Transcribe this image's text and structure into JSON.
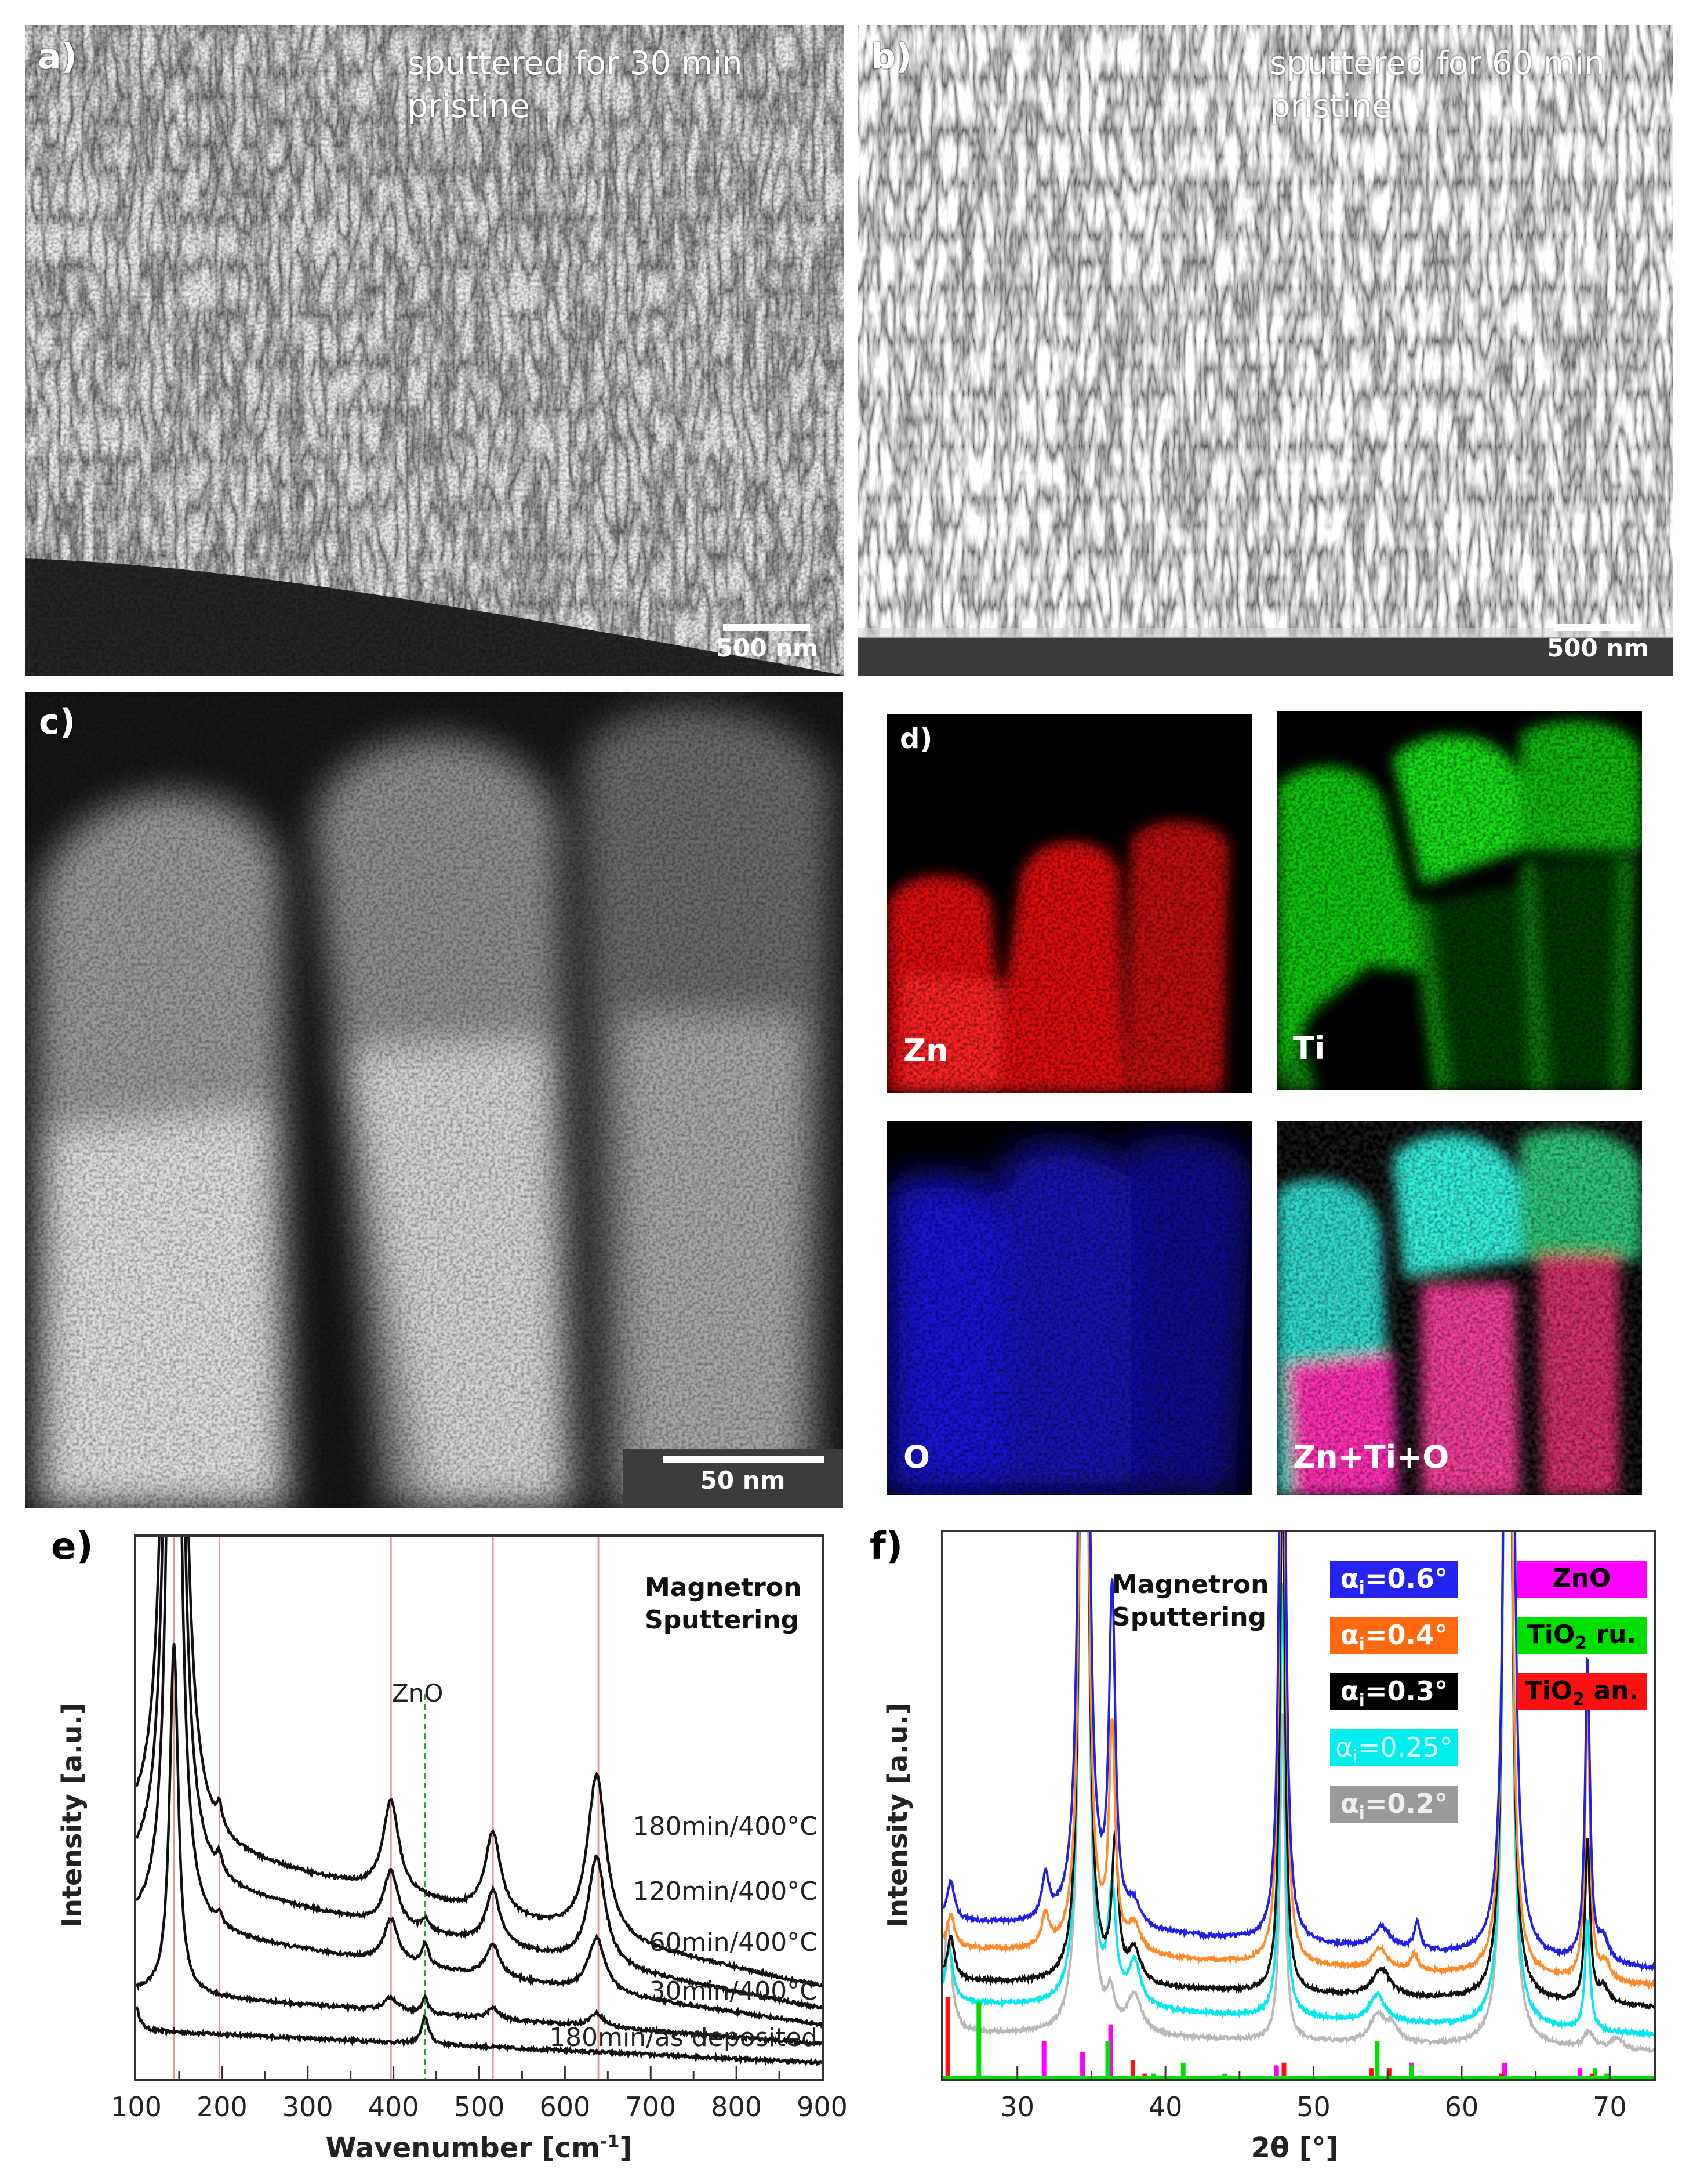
{
  "panels": {
    "a": {
      "label": "a)",
      "caption_line1": "sputtered for 30 min",
      "caption_line2": "pristine",
      "scale_bar": "500 nm"
    },
    "b": {
      "label": "b)",
      "caption_line1": "sputtered for 60 min",
      "caption_line2": "pristine",
      "scale_bar": "500 nm"
    },
    "c": {
      "label": "c)",
      "scale_bar": "50 nm"
    },
    "d": {
      "label": "d)",
      "maps": [
        {
          "element": "Zn",
          "color": "#ff1a1a"
        },
        {
          "element": "Ti",
          "color": "#1aff1a"
        },
        {
          "element": "O",
          "color": "#1a1aff"
        },
        {
          "element": "Zn+Ti+O",
          "color": "#ff33cc"
        }
      ]
    }
  },
  "chart_data": [
    {
      "panel_label": "e)",
      "type": "line",
      "annotation_line1": "Magnetron",
      "annotation_line2": "Sputtering",
      "xlabel": "Wavenumber [cm",
      "xlabel_sup": "-1",
      "xlabel_end": "]",
      "ylabel": "Intensity [a.u.]",
      "xlim": [
        100,
        900
      ],
      "xticks": [
        "100",
        "200",
        "300",
        "400",
        "500",
        "600",
        "700",
        "800",
        "900"
      ],
      "reference_lines": {
        "color": "#e49a9a",
        "x": [
          144,
          197,
          397,
          516,
          639
        ]
      },
      "zno_marker": {
        "label": "ZnO",
        "x": 437,
        "color": "#22aa22"
      },
      "series": [
        {
          "name": "180min/as deposited",
          "baseline": [
            9,
            3
          ],
          "peaks": [
            [
              100,
              4,
              5
            ],
            [
              437,
              5,
              5
            ]
          ]
        },
        {
          "name": "30min/400°C",
          "baseline": [
            16,
            6.5
          ],
          "peaks": [
            [
              144,
              65,
              6
            ],
            [
              397,
              2.5,
              10
            ],
            [
              437,
              3,
              4
            ],
            [
              516,
              2,
              8
            ],
            [
              637,
              2.5,
              10
            ]
          ]
        },
        {
          "name": "60min/400°C",
          "baseline": [
            28,
            10
          ],
          "peaks": [
            [
              144,
              200,
              7
            ],
            [
              197,
              2,
              4
            ],
            [
              397,
              8,
              10
            ],
            [
              437,
              4,
              5
            ],
            [
              516,
              6,
              10
            ],
            [
              637,
              10,
              12
            ]
          ]
        },
        {
          "name": "120min/400°C",
          "baseline": [
            37,
            13
          ],
          "peaks": [
            [
              144,
              300,
              7
            ],
            [
              197,
              3,
              4
            ],
            [
              397,
              10,
              10
            ],
            [
              437,
              2,
              5
            ],
            [
              516,
              10,
              10
            ],
            [
              637,
              20,
              12
            ]
          ]
        },
        {
          "name": "180min/400°C",
          "baseline": [
            44,
            17
          ],
          "peaks": [
            [
              144,
              400,
              7
            ],
            [
              197,
              4,
              4
            ],
            [
              397,
              17,
              11
            ],
            [
              516,
              15,
              11
            ],
            [
              637,
              30,
              13
            ]
          ]
        }
      ]
    },
    {
      "panel_label": "f)",
      "type": "line",
      "annotation_line1": "Magnetron",
      "annotation_line2": "Sputtering",
      "xlabel": "2θ [°]",
      "ylabel": "Intensity [a.u.]",
      "xlim": [
        25,
        73
      ],
      "xticks": [
        "30",
        "40",
        "50",
        "60",
        "70"
      ],
      "series": [
        {
          "alpha_i": "0.2°",
          "color": "#b8b8b8",
          "legend_color": "#9a9a9a",
          "baseline": [
            8.5,
            5
          ],
          "peaks": [
            [
              25.3,
              20,
              0.3
            ],
            [
              34.5,
              300,
              0.2
            ],
            [
              36.3,
              6,
              0.3
            ],
            [
              37.9,
              7,
              0.6
            ],
            [
              47.9,
              60,
              0.2
            ],
            [
              54.3,
              5,
              0.6
            ],
            [
              55.3,
              3,
              0.5
            ],
            [
              63.1,
              300,
              0.2
            ],
            [
              68.6,
              3,
              0.4
            ],
            [
              70.5,
              2,
              0.5
            ]
          ]
        },
        {
          "alpha_i": "0.25°",
          "color": "#00e8f0",
          "legend_color": "#00eeee",
          "baseline": [
            14,
            8
          ],
          "peaks": [
            [
              25.4,
              10,
              0.3
            ],
            [
              34.5,
              300,
              0.2
            ],
            [
              36.4,
              20,
              0.3
            ],
            [
              37.9,
              8,
              0.5
            ],
            [
              47.9,
              80,
              0.2
            ],
            [
              54.3,
              5,
              0.6
            ],
            [
              63.1,
              300,
              0.2
            ],
            [
              68.5,
              20,
              0.2
            ]
          ]
        },
        {
          "alpha_i": "0.3°",
          "color": "#111111",
          "legend_color": "#000000",
          "baseline": [
            18,
            13
          ],
          "peaks": [
            [
              25.5,
              8,
              0.3
            ],
            [
              34.5,
              300,
              0.2
            ],
            [
              36.6,
              25,
              0.25
            ],
            [
              37.9,
              6,
              0.5
            ],
            [
              47.9,
              100,
              0.2
            ],
            [
              54.6,
              5,
              0.7
            ],
            [
              63.1,
              300,
              0.2
            ],
            [
              68.5,
              30,
              0.2
            ],
            [
              69.6,
              3,
              0.4
            ]
          ]
        },
        {
          "alpha_i": "0.4°",
          "color": "#ff8a2a",
          "legend_color": "#ff6a10",
          "baseline": [
            24,
            17
          ],
          "peaks": [
            [
              25.5,
              6,
              0.3
            ],
            [
              31.9,
              6,
              0.3
            ],
            [
              34.5,
              300,
              0.2
            ],
            [
              36.4,
              40,
              0.25
            ],
            [
              37.9,
              5,
              0.5
            ],
            [
              47.9,
              150,
              0.2
            ],
            [
              54.5,
              4,
              0.6
            ],
            [
              56.8,
              3,
              0.3
            ],
            [
              63.1,
              300,
              0.2
            ],
            [
              68.5,
              50,
              0.2
            ],
            [
              69.7,
              3,
              0.4
            ]
          ]
        },
        {
          "alpha_i": "0.6°",
          "color": "#2020e8",
          "legend_color": "#2424ee",
          "baseline": [
            29,
            20
          ],
          "peaks": [
            [
              25.5,
              7,
              0.3
            ],
            [
              31.9,
              8,
              0.3
            ],
            [
              34.5,
              400,
              0.2
            ],
            [
              36.4,
              60,
              0.25
            ],
            [
              37.9,
              4,
              0.5
            ],
            [
              47.9,
              170,
              0.2
            ],
            [
              54.6,
              4,
              0.7
            ],
            [
              57.0,
              5,
              0.25
            ],
            [
              63.2,
              400,
              0.2
            ],
            [
              68.5,
              55,
              0.2
            ],
            [
              69.6,
              4,
              0.4
            ]
          ]
        }
      ],
      "legend_symbol": "α",
      "legend_subscript": "i",
      "references": [
        {
          "name": "ZnO",
          "name_sub": "",
          "name_end": "",
          "color": "#ff00ff",
          "sticks": [
            [
              31.8,
              7
            ],
            [
              34.4,
              5
            ],
            [
              36.3,
              10
            ],
            [
              47.5,
              2.5
            ],
            [
              56.6,
              3
            ],
            [
              62.9,
              3
            ],
            [
              68.0,
              2
            ]
          ]
        },
        {
          "name": "TiO",
          "name_sub": "2",
          "name_end": " ru.",
          "color": "#00e000",
          "sticks": [
            [
              27.4,
              14
            ],
            [
              36.1,
              7
            ],
            [
              39.2,
              1
            ],
            [
              41.2,
              3
            ],
            [
              44.0,
              1
            ],
            [
              54.3,
              7
            ],
            [
              56.6,
              2.5
            ],
            [
              69.0,
              2
            ],
            [
              69.8,
              1
            ]
          ]
        },
        {
          "name": "TiO",
          "name_sub": "2",
          "name_end": " an.",
          "color": "#ff1010",
          "sticks": [
            [
              25.3,
              15
            ],
            [
              37.8,
              3.5
            ],
            [
              38.6,
              1
            ],
            [
              48.0,
              3
            ],
            [
              53.9,
              2
            ],
            [
              55.1,
              2
            ],
            [
              62.7,
              1
            ],
            [
              68.8,
              1
            ]
          ]
        }
      ]
    }
  ]
}
